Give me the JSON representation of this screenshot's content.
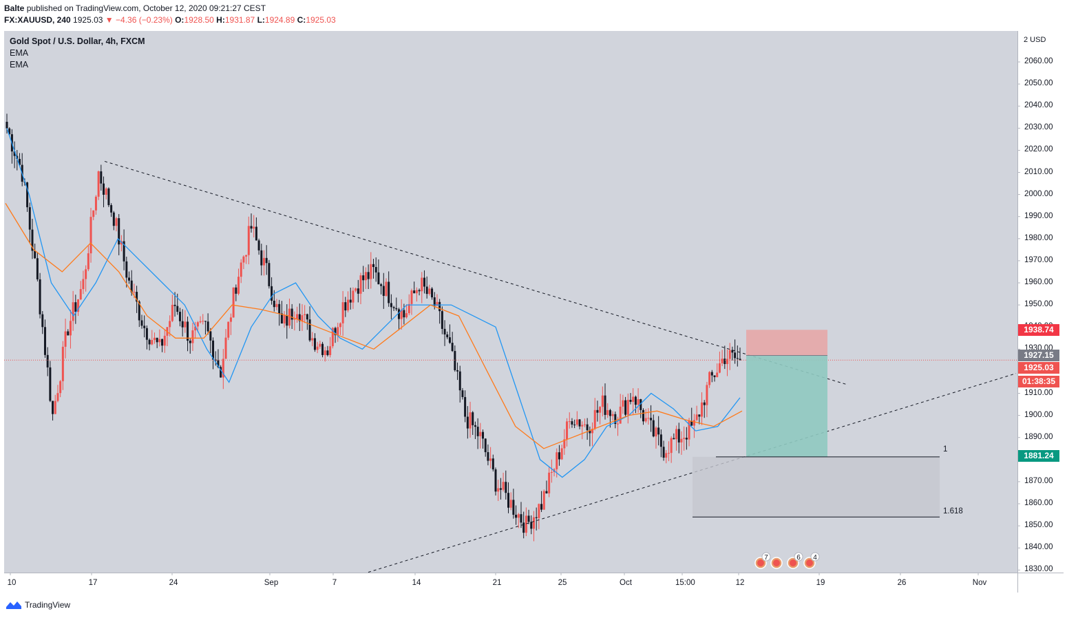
{
  "header": {
    "author": "Balte",
    "published_text": "published on TradingView.com, October 12, 2020 09:21:27 CEST",
    "symbol": "FX:XAUUSD, 240",
    "last": "1925.03",
    "change": "−4.36 (−0.23%)",
    "o_label": "O:",
    "o": "1928.50",
    "h_label": "H:",
    "h": "1931.87",
    "l_label": "L:",
    "l": "1924.89",
    "c_label": "C:",
    "c": "1925.03"
  },
  "legend": {
    "title": "Gold Spot / U.S. Dollar, 4h, FXCM",
    "indicator1": "EMA",
    "indicator2": "EMA"
  },
  "price_axis": {
    "currency": "2 USD",
    "ticks": [
      "2060.00",
      "2050.00",
      "2040.00",
      "2030.00",
      "2020.00",
      "2010.00",
      "2000.00",
      "1990.00",
      "1980.00",
      "1970.00",
      "1960.00",
      "1950.00",
      "1940.00",
      "1930.00",
      "1920.00",
      "1910.00",
      "1900.00",
      "1890.00",
      "1880.00",
      "1870.00",
      "1860.00",
      "1850.00",
      "1840.00",
      "1830.00"
    ],
    "tags": {
      "stop": "1938.74",
      "entry": "1927.15",
      "last": "1925.03",
      "countdown": "01:38:35",
      "target": "1881.24"
    }
  },
  "time_axis": {
    "labels": [
      "10",
      "17",
      "24",
      "Sep",
      "7",
      "14",
      "21",
      "25",
      "Oct",
      "15:00",
      "12",
      "19",
      "26",
      "Nov"
    ]
  },
  "fib": {
    "level1": "1",
    "level2": "1.618"
  },
  "events": [
    "7",
    "6",
    "4"
  ],
  "colors": {
    "up": "#ef5350",
    "down": "#131722",
    "ema_fast": "#2196f3",
    "ema_slow": "#ff7a1a",
    "stop_zone": "#e8a5a5",
    "target_zone": "#8fc9c0",
    "target_tag": "#089981",
    "stop_tag": "#f23645",
    "entry_tag": "#787b86"
  },
  "footer": {
    "brand": "TradingView"
  },
  "chart_data": {
    "type": "candlestick",
    "title": "Gold Spot / U.S. Dollar, 4h, FXCM",
    "ylim": [
      1828,
      2068
    ],
    "x_labels": [
      "10",
      "17",
      "24",
      "Sep",
      "7",
      "14",
      "21",
      "25",
      "Oct",
      "15:00",
      "12",
      "19",
      "26",
      "Nov"
    ],
    "approx_closes": [
      2030,
      2010,
      1960,
      1900,
      1940,
      1960,
      2010,
      1990,
      1960,
      1940,
      1930,
      1950,
      1935,
      1940,
      1920,
      1960,
      1985,
      1965,
      1940,
      1950,
      1935,
      1930,
      1950,
      1960,
      1965,
      1955,
      1945,
      1960,
      1950,
      1930,
      1900,
      1890,
      1870,
      1860,
      1850,
      1860,
      1880,
      1900,
      1895,
      1905,
      1900,
      1910,
      1895,
      1885,
      1890,
      1895,
      1915,
      1927,
      1925
    ],
    "ema_fast_approx": [
      2030,
      2000,
      1960,
      1945,
      1960,
      1980,
      1970,
      1960,
      1950,
      1930,
      1915,
      1940,
      1955,
      1960,
      1945,
      1935,
      1930,
      1940,
      1950,
      1950,
      1950,
      1945,
      1940,
      1910,
      1880,
      1872,
      1880,
      1895,
      1900,
      1910,
      1903,
      1893,
      1895,
      1908
    ],
    "ema_slow_approx": [
      1996,
      1975,
      1965,
      1978,
      1965,
      1945,
      1935,
      1935,
      1950,
      1948,
      1945,
      1940,
      1935,
      1930,
      1940,
      1950,
      1945,
      1920,
      1895,
      1885,
      1890,
      1895,
      1900,
      1902,
      1898,
      1895,
      1902
    ],
    "trendlines": [
      {
        "name": "descending",
        "from": [
          "17",
          2015
        ],
        "to": [
          "19",
          1914
        ]
      },
      {
        "name": "ascending",
        "from": [
          "7",
          1828
        ],
        "to": [
          "Nov",
          1919
        ]
      }
    ],
    "position": {
      "type": "short",
      "entry": 1927.15,
      "stop": 1938.74,
      "target": 1881.24
    },
    "fib_extension": {
      "1": 1881.24,
      "1.618": 1854
    }
  }
}
